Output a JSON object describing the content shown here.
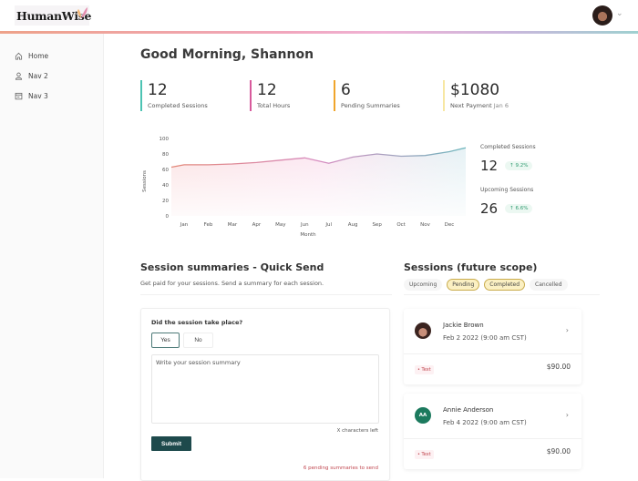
{
  "header": {
    "logo_text": "HumanWise",
    "avatar_alt": "Shannon",
    "line_colors": [
      "#eea289",
      "#f1a6bd",
      "#c9b7dc",
      "#9fd0d0"
    ]
  },
  "sidebar": {
    "items": [
      {
        "label": "Home",
        "icon": "home-icon"
      },
      {
        "label": "Nav 2",
        "icon": "user-icon"
      },
      {
        "label": "Nav 3",
        "icon": "calendar-icon"
      }
    ]
  },
  "greeting": "Good Morning, Shannon",
  "stats": [
    {
      "value": "12",
      "label": "Completed Sessions",
      "color": "#4cc3b3"
    },
    {
      "value": "12",
      "label": "Total Hours",
      "color": "#d85a9c"
    },
    {
      "value": "6",
      "label": "Pending Summaries",
      "color": "#f0a52b"
    },
    {
      "value": "$1080",
      "label": "Next Payment",
      "sublabel": "Jan 6",
      "color": "#f7e7a3"
    }
  ],
  "chart_data": {
    "type": "area",
    "title": "",
    "xlabel": "Month",
    "ylabel": "Sessions",
    "categories": [
      "Jan",
      "Feb",
      "Mar",
      "Apr",
      "May",
      "Jun",
      "Jul",
      "Aug",
      "Sep",
      "Oct",
      "Nov",
      "Dec"
    ],
    "series": [
      {
        "name": "Sessions",
        "values": [
          66,
          66,
          67,
          69,
          72,
          75,
          68,
          76,
          80,
          77,
          78,
          83
        ]
      }
    ],
    "start_value": 63,
    "end_value": 88,
    "ylim": [
      0,
      100
    ],
    "yticks": [
      0,
      20,
      40,
      60,
      80,
      100
    ],
    "grid": false,
    "legend": "none",
    "gradient_colors": [
      "#e38878",
      "#d78bc0",
      "#6fb7bd"
    ]
  },
  "side_stats": {
    "completed": {
      "label": "Completed Sessions",
      "value": "12",
      "change": "9.2%"
    },
    "upcoming": {
      "label": "Upcoming Sessions",
      "value": "26",
      "change": "6.6%"
    }
  },
  "quick_send": {
    "title": "Session summaries - Quick Send",
    "subtitle": "Get paid for your sessions. Send a summary for each session.",
    "question": "Did the session take place?",
    "yes_label": "Yes",
    "no_label": "No",
    "summary_placeholder": "Write your session summary",
    "summary_value": "",
    "chars_left": "X characters left",
    "submit_label": "Submit",
    "pending_note": "6 pending summaries to send"
  },
  "sessions": {
    "title": "Sessions (future scope)",
    "filters": [
      {
        "label": "Upcoming",
        "active": false
      },
      {
        "label": "Pending",
        "active": true
      },
      {
        "label": "Completed",
        "active": true
      },
      {
        "label": "Cancelled",
        "active": false
      }
    ],
    "items": [
      {
        "name": "Jackie Brown",
        "date": "Feb 2 2022 (9:00 am CST)",
        "tag": "Text",
        "price": "$90.00",
        "initials": "",
        "avatar_type": "photo"
      },
      {
        "name": "Annie Anderson",
        "date": "Feb 4 2022 (9:00 am CST)",
        "tag": "Text",
        "price": "$90.00",
        "initials": "AA",
        "avatar_type": "initials",
        "avatar_color": "#1c7a5e"
      }
    ]
  }
}
